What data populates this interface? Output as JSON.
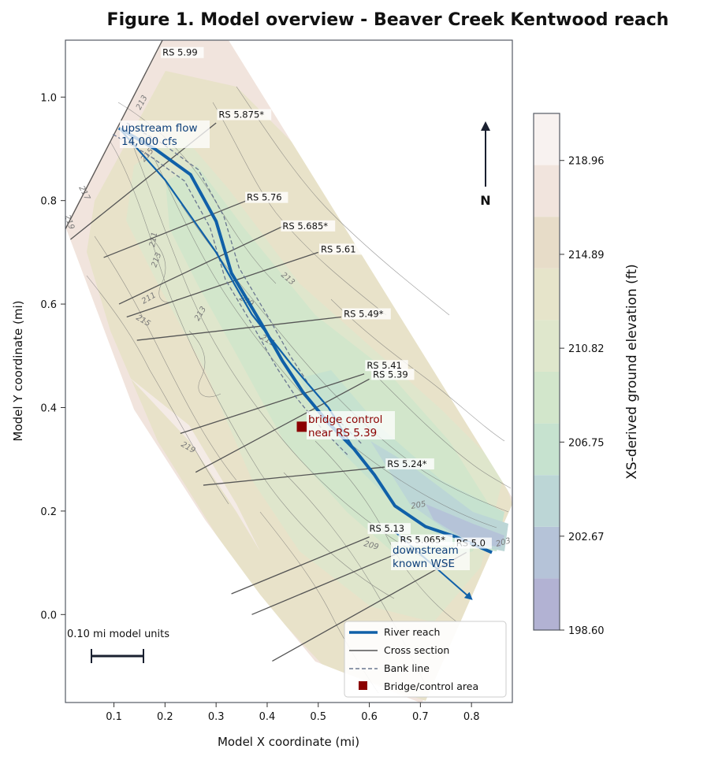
{
  "chart_data": {
    "type": "map",
    "title": "Figure 1. Model overview - Beaver Creek Kentwood reach",
    "xlabel": "Model X coordinate (mi)",
    "ylabel": "Model Y coordinate (mi)",
    "xlim": [
      0.005,
      0.88
    ],
    "ylim": [
      -0.17,
      1.11
    ],
    "x_ticks": [
      "0.1",
      "0.2",
      "0.3",
      "0.4",
      "0.5",
      "0.6",
      "0.7",
      "0.8"
    ],
    "y_ticks": [
      "0.0",
      "0.2",
      "0.4",
      "0.6",
      "0.8",
      "1.0"
    ],
    "x_tick_values": [
      0.1,
      0.2,
      0.3,
      0.4,
      0.5,
      0.6,
      0.7,
      0.8
    ],
    "y_tick_values": [
      0.0,
      0.2,
      0.4,
      0.6,
      0.8,
      1.0
    ],
    "river_reach": [
      [
        0.11,
        0.94
      ],
      [
        0.18,
        0.9
      ],
      [
        0.25,
        0.85
      ],
      [
        0.3,
        0.76
      ],
      [
        0.33,
        0.66
      ],
      [
        0.39,
        0.56
      ],
      [
        0.43,
        0.49
      ],
      [
        0.47,
        0.43
      ],
      [
        0.52,
        0.37
      ],
      [
        0.57,
        0.32
      ],
      [
        0.61,
        0.27
      ],
      [
        0.65,
        0.21
      ],
      [
        0.71,
        0.17
      ],
      [
        0.77,
        0.15
      ],
      [
        0.84,
        0.12
      ]
    ],
    "channel_branch": [
      [
        0.11,
        0.94
      ],
      [
        0.2,
        0.84
      ],
      [
        0.3,
        0.7
      ],
      [
        0.37,
        0.58
      ],
      [
        0.45,
        0.48
      ],
      [
        0.52,
        0.4
      ],
      [
        0.57,
        0.32
      ]
    ],
    "downstream_arrow": [
      [
        0.65,
        0.16
      ],
      [
        0.8,
        0.03
      ]
    ],
    "cross_sections": [
      {
        "label": "RS 5.99",
        "from": [
          0.005,
          0.745
        ],
        "to": [
          0.195,
          1.11
        ],
        "label_at": [
          0.195,
          1.08
        ]
      },
      {
        "label": "RS 5.875*",
        "from": [
          0.015,
          0.725
        ],
        "to": [
          0.3,
          0.95
        ],
        "label_at": [
          0.305,
          0.96
        ]
      },
      {
        "label": "RS 5.76",
        "from": [
          0.08,
          0.69
        ],
        "to": [
          0.36,
          0.8
        ],
        "label_at": [
          0.36,
          0.8
        ]
      },
      {
        "label": "RS 5.685*",
        "from": [
          0.11,
          0.6
        ],
        "to": [
          0.43,
          0.75
        ],
        "label_at": [
          0.43,
          0.745
        ]
      },
      {
        "label": "RS 5.61",
        "from": [
          0.125,
          0.575
        ],
        "to": [
          0.5,
          0.7
        ],
        "label_at": [
          0.505,
          0.7
        ]
      },
      {
        "label": "RS 5.49*",
        "from": [
          0.145,
          0.53
        ],
        "to": [
          0.545,
          0.575
        ],
        "label_at": [
          0.55,
          0.575
        ]
      },
      {
        "label": "RS 5.41",
        "from": [
          0.23,
          0.35
        ],
        "to": [
          0.59,
          0.465
        ],
        "label_at": [
          0.595,
          0.475
        ]
      },
      {
        "label": "RS 5.39",
        "from": [
          0.26,
          0.275
        ],
        "to": [
          0.6,
          0.455
        ],
        "label_at": [
          0.607,
          0.458
        ]
      },
      {
        "label": "RS 5.24*",
        "from": [
          0.275,
          0.25
        ],
        "to": [
          0.63,
          0.285
        ],
        "label_at": [
          0.635,
          0.285
        ]
      },
      {
        "label": "RS 5.13",
        "from": [
          0.33,
          0.04
        ],
        "to": [
          0.6,
          0.15
        ],
        "label_at": [
          0.6,
          0.16
        ]
      },
      {
        "label": "RS 5.065*",
        "from": [
          0.37,
          0.0
        ],
        "to": [
          0.66,
          0.12
        ],
        "label_at": [
          0.66,
          0.138
        ]
      },
      {
        "label": "RS 5.0",
        "from": [
          0.41,
          -0.09
        ],
        "to": [
          0.79,
          0.12
        ],
        "label_at": [
          0.77,
          0.132
        ]
      }
    ],
    "contour_labels": [
      "213",
      "215",
      "217",
      "219",
      "211",
      "213",
      "211",
      "215",
      "213",
      "209",
      "219",
      "211",
      "209",
      "205",
      "203",
      "213"
    ],
    "colorbar": {
      "label": "XS-derived ground elevation (ft)",
      "min": 198.6,
      "max": 221.0,
      "ticks": [
        "218.96",
        "214.89",
        "210.82",
        "206.75",
        "202.67",
        "198.60"
      ],
      "tick_values": [
        218.96,
        214.89,
        210.82,
        206.75,
        202.67,
        198.6
      ],
      "colors": [
        "#b2b2d3",
        "#b5c3d8",
        "#bcd6d6",
        "#c6e2cf",
        "#d2e6cb",
        "#dfe7cc",
        "#e6e4ca",
        "#e7dcc8",
        "#f1e4dd",
        "#f8f2f0"
      ]
    },
    "annotations": {
      "upstream_line1": "upstream flow",
      "upstream_line2": "14,000 cfs",
      "bridge_line1": "bridge control",
      "bridge_line2": "near RS 5.39",
      "downstream_line1": "downstream",
      "downstream_line2": "known WSE"
    },
    "north_label": "N",
    "scale_bar_label": "0.10 mi model units",
    "bridge_point": [
      0.468,
      0.363
    ],
    "legend": {
      "placement": "lower-right",
      "entries": [
        "River reach",
        "Cross section",
        "Bank line",
        "Bridge/control area"
      ]
    },
    "colors": {
      "river": "#1060a8",
      "cross_section": "#555555",
      "bank_line": "#6a7690",
      "bridge": "#8b0000",
      "annotation_blue": "#0d3f7a",
      "annotation_red": "#8b0000"
    }
  }
}
